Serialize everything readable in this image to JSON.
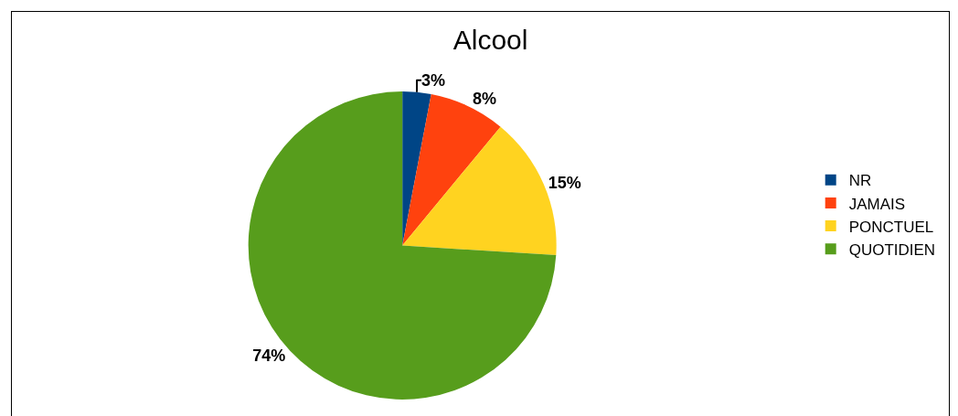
{
  "chart_data": {
    "type": "pie",
    "title": "Alcool",
    "categories": [
      "NR",
      "JAMAIS",
      "PONCTUEL",
      "QUOTIDIEN"
    ],
    "values": [
      3,
      8,
      15,
      74
    ],
    "colors": [
      "#004586",
      "#ff420e",
      "#ffd320",
      "#579d1c"
    ],
    "value_labels": [
      "3%",
      "8%",
      "15%",
      "74%"
    ],
    "legend": "right"
  }
}
